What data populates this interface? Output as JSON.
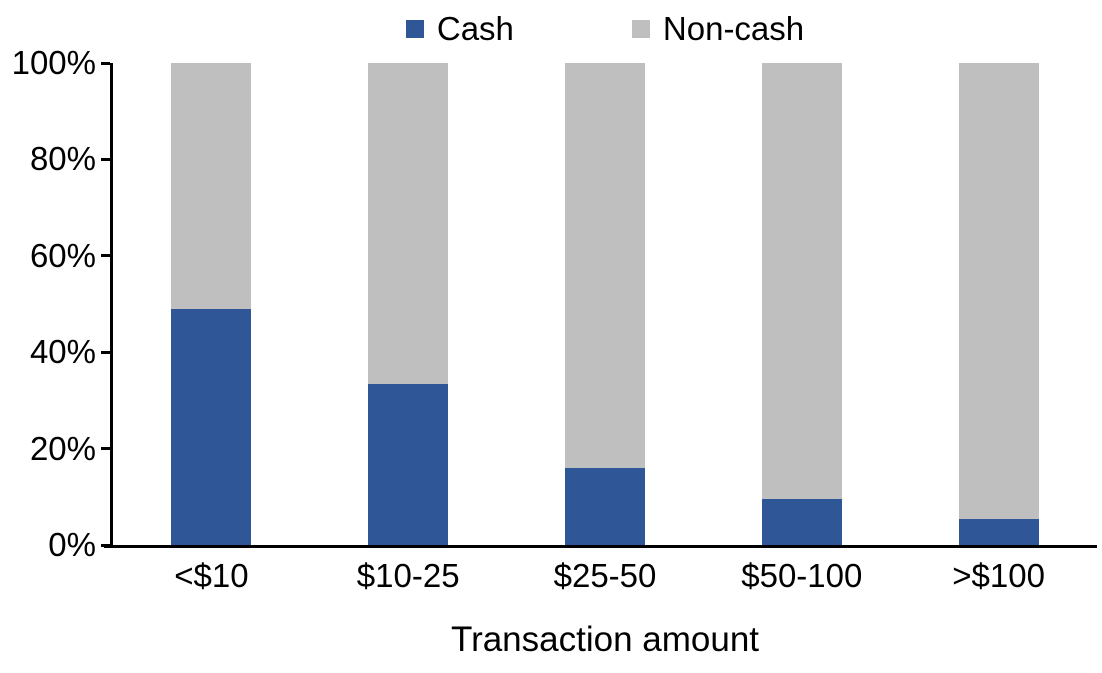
{
  "chart_data": {
    "type": "bar",
    "stacking": "100%",
    "title": "",
    "xlabel": "Transaction amount",
    "ylabel": "",
    "categories": [
      "<$10",
      "$10-25",
      "$25-50",
      "$50-100",
      ">$100"
    ],
    "series": [
      {
        "name": "Cash",
        "color": "#2F5697",
        "values": [
          49,
          33.5,
          16,
          9.5,
          5.5
        ]
      },
      {
        "name": "Non-cash",
        "color": "#BFBFBF",
        "values": [
          51,
          66.5,
          84,
          90.5,
          94.5
        ]
      }
    ],
    "ylim": [
      0,
      100
    ],
    "yticks": [
      0,
      20,
      40,
      60,
      80,
      100
    ],
    "ytick_labels": [
      "0%",
      "20%",
      "40%",
      "60%",
      "80%",
      "100%"
    ],
    "grid": false,
    "legend_position": "top",
    "axis_color": "#000000",
    "background_color": "#FFFFFF"
  }
}
